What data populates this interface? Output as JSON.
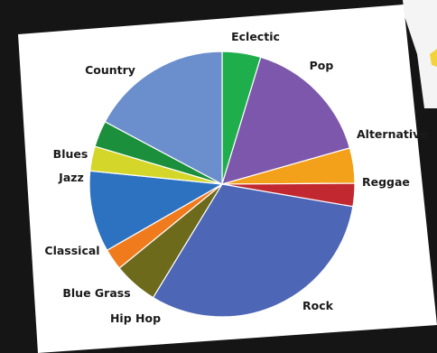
{
  "chart_data": {
    "type": "pie",
    "title": "",
    "slices": [
      {
        "label": "Eclectic",
        "value": 4.7,
        "color": "#1fae4c"
      },
      {
        "label": "Pop",
        "value": 15.9,
        "color": "#7d57ab"
      },
      {
        "label": "Alternative",
        "value": 4.3,
        "color": "#f3a01a"
      },
      {
        "label": "Reggae",
        "value": 2.8,
        "color": "#c1282f"
      },
      {
        "label": "Rock",
        "value": 31.0,
        "color": "#4d66b5"
      },
      {
        "label": "Hip Hop",
        "value": 5.4,
        "color": "#6d6a1c"
      },
      {
        "label": "Blue Grass",
        "value": 2.6,
        "color": "#f07b1d"
      },
      {
        "label": "Classical",
        "value": 9.9,
        "color": "#2d72c0"
      },
      {
        "label": "Jazz",
        "value": 3.0,
        "color": "#d4d62a"
      },
      {
        "label": "Blues",
        "value": 3.2,
        "color": "#1b8f3b"
      },
      {
        "label": "Country",
        "value": 17.2,
        "color": "#6b8fcc"
      }
    ],
    "start_angle_deg": 0,
    "direction": "clockwise",
    "legend": "none (labels placed around the pie)"
  }
}
